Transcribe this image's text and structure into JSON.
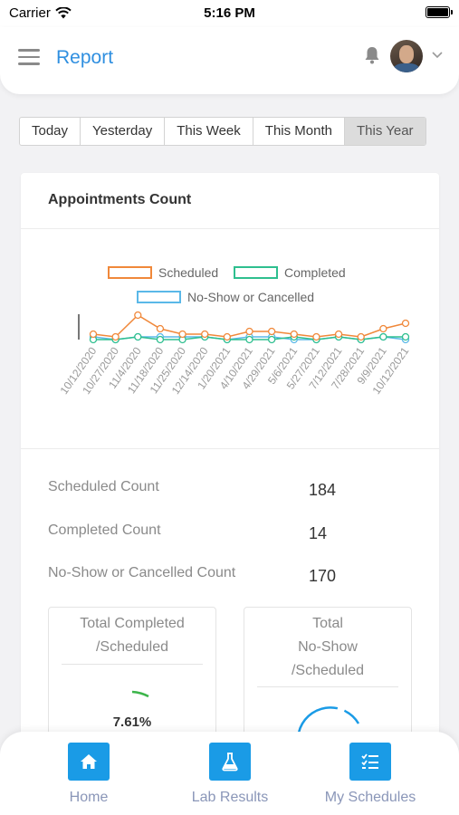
{
  "status_bar": {
    "carrier": "Carrier",
    "time": "5:16 PM"
  },
  "header": {
    "title": "Report"
  },
  "tabs": [
    {
      "label": "Today"
    },
    {
      "label": "Yesterday"
    },
    {
      "label": "This Week"
    },
    {
      "label": "This Month"
    },
    {
      "label": "This Year",
      "active": true
    }
  ],
  "card": {
    "title": "Appointments Count"
  },
  "chart_data": {
    "type": "line",
    "title": "",
    "legend": "top-center",
    "x": [
      "10/12/2020",
      "10/27/2020",
      "11/4/2020",
      "11/18/2020",
      "11/25/2020",
      "12/14/2020",
      "1/20/2021",
      "4/10/2021",
      "4/29/2021",
      "5/6/2021",
      "5/27/2021",
      "7/12/2021",
      "7/28/2021",
      "9/9/2021",
      "10/12/2021"
    ],
    "series": [
      {
        "name": "Scheduled",
        "color": "#f0883a",
        "values": [
          2,
          1,
          9,
          4,
          2,
          2,
          1,
          3,
          3,
          2,
          1,
          2,
          1,
          4,
          6
        ]
      },
      {
        "name": "Completed",
        "color": "#2ebf8f",
        "values": [
          0,
          0,
          1,
          0,
          0,
          1,
          0,
          0,
          0,
          1,
          0,
          1,
          0,
          1,
          1
        ]
      },
      {
        "name": "No-Show or Cancelled",
        "color": "#5ab8e8",
        "values": [
          1,
          0,
          1,
          1,
          1,
          1,
          0,
          1,
          1,
          0,
          0,
          1,
          0,
          1,
          0
        ]
      }
    ]
  },
  "stats": [
    {
      "label": "Scheduled Count",
      "value": "184"
    },
    {
      "label": "Completed Count",
      "value": "14"
    },
    {
      "label": "No-Show or Cancelled Count",
      "value": "170"
    }
  ],
  "completed_card": {
    "title_line1": "Total Completed",
    "title_line2": "/Scheduled",
    "percent": "7.61%",
    "fraction": 0.0761,
    "color": "#3cb54a"
  },
  "noshow_card": {
    "title_line1": "Total",
    "title_line2": "No-Show",
    "title_line3": "/Scheduled",
    "color": "#1a9be6"
  },
  "bottom_nav": [
    {
      "label": "Home",
      "icon": "home-icon"
    },
    {
      "label": "Lab Results",
      "icon": "flask-icon"
    },
    {
      "label": "My Schedules",
      "icon": "checklist-icon"
    }
  ]
}
